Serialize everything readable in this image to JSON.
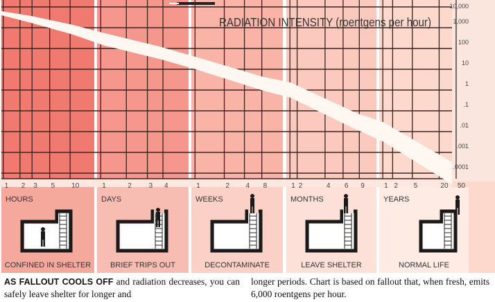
{
  "chart_data": {
    "type": "line",
    "title": "RADIATION INTENSITY (roentgens per hour)",
    "y_scale": "log",
    "ylim": [
      0.0001,
      10000
    ],
    "y_tick_labels": [
      "10,000",
      "1,000",
      "100",
      "10",
      "1",
      ".1",
      ".01",
      ".001",
      ".0001"
    ],
    "phases": [
      {
        "name": "HOURS",
        "ticks": [
          "1",
          "2",
          "3",
          "5",
          "10"
        ],
        "activity": "CONFINED IN SHELTER",
        "color": "#f07a70",
        "band": "#f5a89c"
      },
      {
        "name": "DAYS",
        "ticks": [
          "1",
          "2",
          "3",
          "4"
        ],
        "activity": "BRIEF TRIPS OUT",
        "color": "#f5978c",
        "band": "#f8bdb2"
      },
      {
        "name": "WEEKS",
        "ticks": [
          "1",
          "2",
          "4",
          "8"
        ],
        "activity": "DECONTAMINATE",
        "color": "#f9b3a7",
        "band": "#fbd1c7"
      },
      {
        "name": "MONTHS",
        "ticks": [
          "1",
          "2",
          "4",
          "6",
          "9"
        ],
        "activity": "LEAVE SHELTER",
        "color": "#fbc9bd",
        "band": "#fde1d8"
      },
      {
        "name": "YEARS",
        "ticks": [
          "1",
          "2",
          "5",
          "20",
          "50"
        ],
        "activity": "NORMAL LIFE",
        "color": "#fcd9cc",
        "band": "#feebe3"
      }
    ],
    "series": [
      {
        "points": [
          {
            "x": "1 hour",
            "y": 5000
          },
          {
            "x": "3 hours",
            "y": 2500
          },
          {
            "x": "10 hours",
            "y": 800
          },
          {
            "x": "1 day",
            "y": 280
          },
          {
            "x": "4 days",
            "y": 60
          },
          {
            "x": "1 week",
            "y": 20
          },
          {
            "x": "8 weeks",
            "y": 2
          },
          {
            "x": "1 month",
            "y": 1
          },
          {
            "x": "9 months",
            "y": 0.03
          },
          {
            "x": "1 year",
            "y": 0.01
          },
          {
            "x": "50 years",
            "y": 0.0001
          }
        ]
      }
    ]
  },
  "caption": {
    "left_lead": "AS FALLOUT COOLS OFF",
    "left_rest": " and radiation decreases, you can safely leave shelter for longer and",
    "right": "longer periods. Chart is based on fallout that, when fresh, emits 6,000 roentgens per hour."
  }
}
